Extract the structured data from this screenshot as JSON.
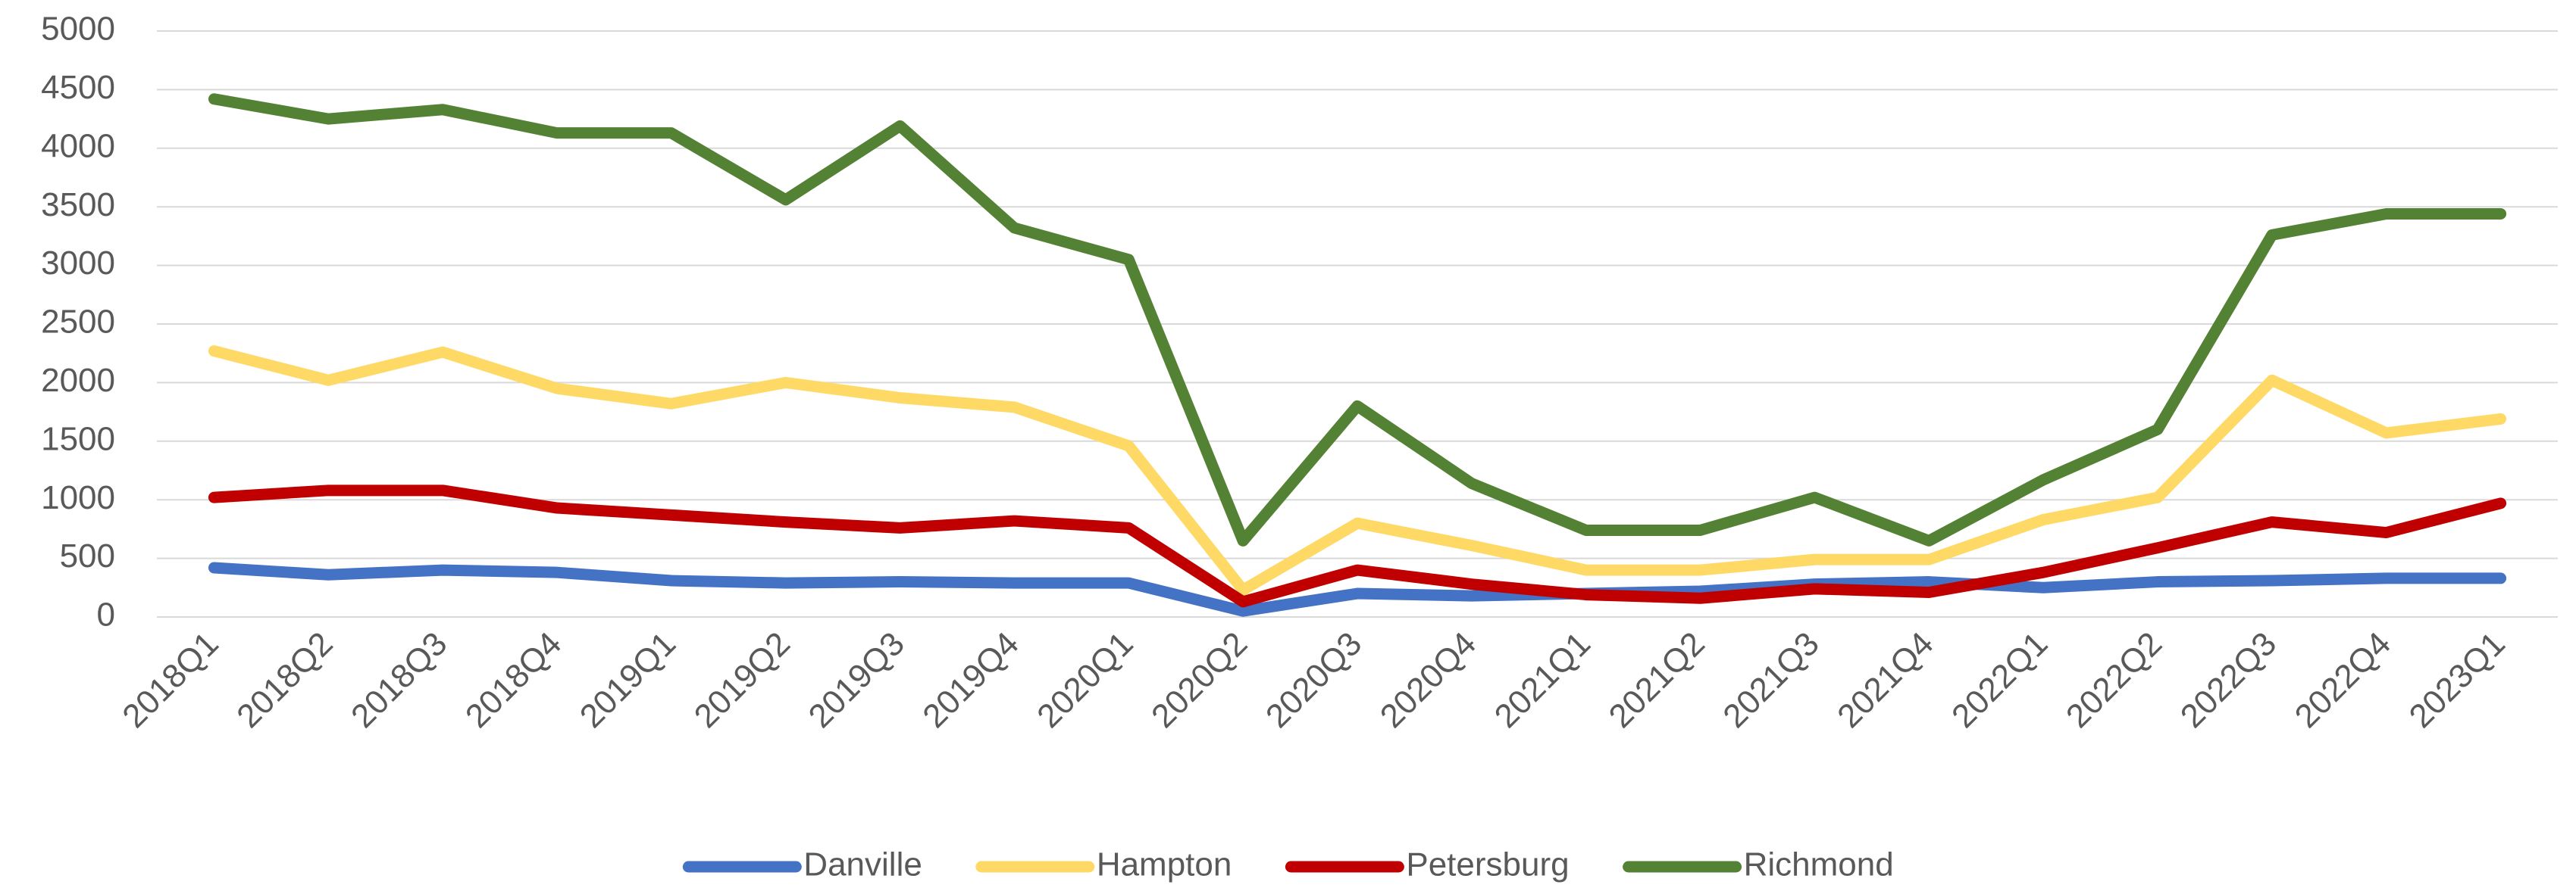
{
  "chart_data": {
    "type": "line",
    "categories": [
      "2018Q1",
      "2018Q2",
      "2018Q3",
      "2018Q4",
      "2019Q1",
      "2019Q2",
      "2019Q3",
      "2019Q4",
      "2020Q1",
      "2020Q2",
      "2020Q3",
      "2020Q4",
      "2021Q1",
      "2021Q2",
      "2021Q3",
      "2021Q4",
      "2022Q1",
      "2022Q2",
      "2022Q3",
      "2022Q4",
      "2023Q1"
    ],
    "series": [
      {
        "name": "Danville",
        "color": "#4472c4",
        "values": [
          420,
          360,
          400,
          380,
          310,
          290,
          300,
          290,
          290,
          50,
          200,
          180,
          200,
          220,
          280,
          300,
          250,
          300,
          310,
          330,
          330
        ]
      },
      {
        "name": "Hampton",
        "color": "#ffd966",
        "values": [
          2270,
          2020,
          2260,
          1950,
          1820,
          2000,
          1870,
          1790,
          1460,
          230,
          800,
          610,
          400,
          400,
          490,
          490,
          830,
          1020,
          2020,
          1570,
          1690
        ]
      },
      {
        "name": "Petersburg",
        "color": "#c00000",
        "values": [
          1020,
          1080,
          1080,
          930,
          870,
          810,
          760,
          820,
          760,
          130,
          400,
          280,
          190,
          160,
          240,
          210,
          380,
          590,
          810,
          720,
          970
        ]
      },
      {
        "name": "Richmond",
        "color": "#548235",
        "values": [
          4420,
          4250,
          4330,
          4130,
          4130,
          3560,
          4190,
          3320,
          3050,
          650,
          1800,
          1140,
          740,
          740,
          1020,
          650,
          1170,
          1600,
          3260,
          3440,
          3440
        ]
      }
    ],
    "ylim": [
      0,
      5000
    ],
    "yticks": [
      0,
      500,
      1000,
      1500,
      2000,
      2500,
      3000,
      3500,
      4000,
      4500,
      5000
    ],
    "grid": true,
    "legend": "bottom"
  }
}
